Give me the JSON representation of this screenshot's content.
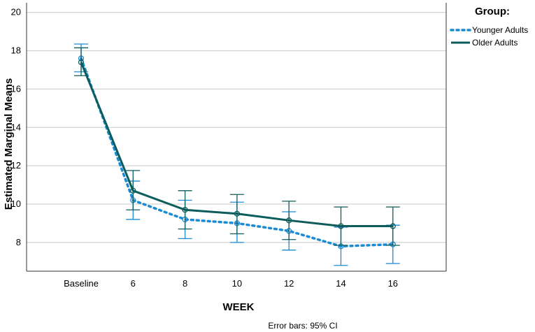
{
  "chart_data": {
    "type": "line",
    "title": "",
    "xlabel": "WEEK",
    "ylabel": "Estimated Marginal Means",
    "categories": [
      "Baseline",
      "6",
      "8",
      "10",
      "12",
      "14",
      "16"
    ],
    "ylim": [
      6.5,
      20.5
    ],
    "yticks": [
      8,
      10,
      12,
      14,
      16,
      18,
      20
    ],
    "grid": "horizontal",
    "legend": {
      "title": "Group:",
      "position": "top-right"
    },
    "footnote": "Error bars: 95% CI",
    "series": [
      {
        "name": "Younger Adults",
        "style": "dotted",
        "color": "#1b8bd4",
        "values": [
          17.6,
          10.2,
          9.2,
          9.0,
          8.6,
          7.8,
          7.9
        ],
        "ci_low": [
          16.9,
          9.2,
          8.2,
          8.0,
          7.6,
          6.8,
          6.9
        ],
        "ci_high": [
          18.35,
          11.2,
          10.2,
          10.1,
          9.6,
          8.8,
          8.9
        ]
      },
      {
        "name": "Older Adults",
        "style": "solid",
        "color": "#0d5c5c",
        "values": [
          17.4,
          10.7,
          9.7,
          9.5,
          9.15,
          8.85,
          8.85
        ],
        "ci_low": [
          16.7,
          9.7,
          8.7,
          8.45,
          8.15,
          7.85,
          7.85
        ],
        "ci_high": [
          18.15,
          11.75,
          10.7,
          10.5,
          10.15,
          9.85,
          9.85
        ]
      }
    ]
  }
}
